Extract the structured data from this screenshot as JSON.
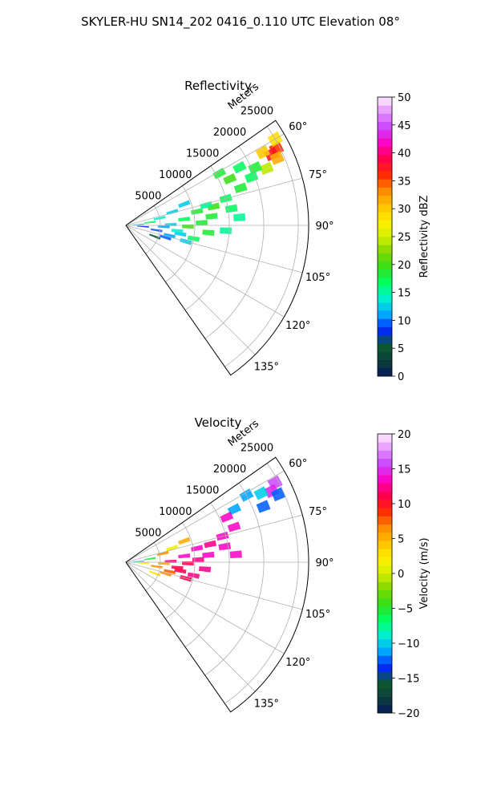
{
  "figure": {
    "title": "SKYLER-HU  SN14_202  0416_0.110 UTC Elevation 08°"
  },
  "chart_data": [
    {
      "type": "heatmap",
      "subtype": "polar-sector",
      "title": "Reflectivity",
      "range_axis_label": "Meters",
      "range_ticks": [
        5000,
        10000,
        15000,
        20000,
        25000
      ],
      "range_tick_labels": [
        "5000",
        "10000",
        "15000",
        "20000",
        "25000"
      ],
      "range_lim": [
        0,
        26500
      ],
      "azimuth_ticks": [
        60,
        75,
        90,
        105,
        120,
        135
      ],
      "azimuth_tick_labels": [
        "60°",
        "75°",
        "90°",
        "105°",
        "120°",
        "135°"
      ],
      "azimuth_lim": [
        55,
        145
      ],
      "grid": true,
      "colorbar": {
        "label": "Reflectivity dBZ",
        "ticks": [
          0,
          5,
          10,
          15,
          20,
          25,
          30,
          35,
          40,
          45,
          50
        ],
        "tick_labels": [
          "0",
          "5",
          "10",
          "15",
          "20",
          "25",
          "30",
          "35",
          "40",
          "45",
          "50"
        ],
        "range": [
          0,
          50
        ],
        "steps": 34,
        "colormap": [
          "#061a5a",
          "#0c3f3a",
          "#0b5a2e",
          "#0026ff",
          "#00aaff",
          "#00f0d0",
          "#00ff66",
          "#33e01a",
          "#7ed600",
          "#d4ee00",
          "#fff000",
          "#ffc000",
          "#ff8800",
          "#ff2a00",
          "#ff0048",
          "#ff00c0",
          "#c840ff",
          "#e490ff",
          "#fff0ff"
        ]
      },
      "cells": [
        {
          "az": 63,
          "r": 24500,
          "value": 36
        },
        {
          "az": 64,
          "r": 23500,
          "value": 38
        },
        {
          "az": 62,
          "r": 22500,
          "value": 30
        },
        {
          "az": 66,
          "r": 24000,
          "value": 32
        },
        {
          "az": 60,
          "r": 25000,
          "value": 28
        },
        {
          "az": 68,
          "r": 22000,
          "value": 24
        },
        {
          "az": 66,
          "r": 20500,
          "value": 18
        },
        {
          "az": 63,
          "r": 18500,
          "value": 17
        },
        {
          "az": 66,
          "r": 16500,
          "value": 20
        },
        {
          "az": 61,
          "r": 15500,
          "value": 19
        },
        {
          "az": 72,
          "r": 17500,
          "value": 19
        },
        {
          "az": 75,
          "r": 15000,
          "value": 17
        },
        {
          "az": 78,
          "r": 13000,
          "value": 20
        },
        {
          "az": 81,
          "r": 15500,
          "value": 17
        },
        {
          "az": 84,
          "r": 12500,
          "value": 19
        },
        {
          "az": 88,
          "r": 11000,
          "value": 18
        },
        {
          "az": 91,
          "r": 9000,
          "value": 20
        },
        {
          "az": 95,
          "r": 12000,
          "value": 18
        },
        {
          "az": 86,
          "r": 16500,
          "value": 16
        },
        {
          "az": 70,
          "r": 9000,
          "value": 13
        },
        {
          "az": 74,
          "r": 7000,
          "value": 12
        },
        {
          "az": 78,
          "r": 5000,
          "value": 14
        },
        {
          "az": 83,
          "r": 3500,
          "value": 17
        },
        {
          "az": 86,
          "r": 1800,
          "value": 12
        },
        {
          "az": 94,
          "r": 2500,
          "value": 8
        },
        {
          "az": 99,
          "r": 4500,
          "value": 9
        },
        {
          "az": 103,
          "r": 6500,
          "value": 11
        },
        {
          "az": 99,
          "r": 8000,
          "value": 12
        },
        {
          "az": 107,
          "r": 6000,
          "value": 9
        },
        {
          "az": 111,
          "r": 4500,
          "value": 5
        },
        {
          "az": 92,
          "r": 5500,
          "value": 11
        },
        {
          "az": 89,
          "r": 6500,
          "value": 13
        },
        {
          "az": 84,
          "r": 8500,
          "value": 17
        },
        {
          "az": 79,
          "r": 10500,
          "value": 18
        },
        {
          "az": 76,
          "r": 12000,
          "value": 15
        },
        {
          "az": 96,
          "r": 7500,
          "value": 14
        },
        {
          "az": 101,
          "r": 10000,
          "value": 17
        },
        {
          "az": 105,
          "r": 9000,
          "value": 13
        },
        {
          "az": 93,
          "r": 14500,
          "value": 16
        },
        {
          "az": 69,
          "r": 19500,
          "value": 17
        }
      ]
    },
    {
      "type": "heatmap",
      "subtype": "polar-sector",
      "title": "Velocity",
      "range_axis_label": "Meters",
      "range_ticks": [
        5000,
        10000,
        15000,
        20000,
        25000
      ],
      "range_tick_labels": [
        "5000",
        "10000",
        "15000",
        "20000",
        "25000"
      ],
      "range_lim": [
        0,
        26500
      ],
      "azimuth_ticks": [
        60,
        75,
        90,
        105,
        120,
        135
      ],
      "azimuth_tick_labels": [
        "60°",
        "75°",
        "90°",
        "105°",
        "120°",
        "135°"
      ],
      "azimuth_lim": [
        55,
        145
      ],
      "grid": true,
      "colorbar": {
        "label": "Velocity (m/s)",
        "ticks": [
          -20,
          -15,
          -10,
          -5,
          0,
          5,
          10,
          15,
          20
        ],
        "tick_labels": [
          "−20",
          "−15",
          "−10",
          "−5",
          "0",
          "5",
          "10",
          "15",
          "20"
        ],
        "range": [
          -20,
          20
        ],
        "steps": 34,
        "colormap": [
          "#061a5a",
          "#0c3f3a",
          "#0b5a2e",
          "#0026ff",
          "#00aaff",
          "#00f0d0",
          "#00ff66",
          "#33e01a",
          "#7ed600",
          "#d4ee00",
          "#fff000",
          "#ffc000",
          "#ff8800",
          "#ff2a00",
          "#ff0048",
          "#ff00c0",
          "#c840ff",
          "#e490ff",
          "#fff0ff"
        ]
      },
      "cells": [
        {
          "az": 62,
          "r": 24500,
          "value": 16
        },
        {
          "az": 64,
          "r": 23500,
          "value": 15
        },
        {
          "az": 66,
          "r": 24200,
          "value": -12
        },
        {
          "az": 63,
          "r": 22000,
          "value": -10
        },
        {
          "az": 61,
          "r": 20000,
          "value": -11
        },
        {
          "az": 68,
          "r": 21500,
          "value": -12
        },
        {
          "az": 64,
          "r": 17500,
          "value": -11
        },
        {
          "az": 66,
          "r": 16000,
          "value": 13
        },
        {
          "az": 72,
          "r": 16500,
          "value": 14
        },
        {
          "az": 75,
          "r": 14500,
          "value": 13
        },
        {
          "az": 78,
          "r": 12500,
          "value": 12
        },
        {
          "az": 81,
          "r": 14500,
          "value": 13
        },
        {
          "az": 85,
          "r": 12000,
          "value": 13
        },
        {
          "az": 88,
          "r": 10500,
          "value": 12
        },
        {
          "az": 91,
          "r": 9000,
          "value": 11
        },
        {
          "az": 95,
          "r": 11500,
          "value": 12
        },
        {
          "az": 86,
          "r": 16000,
          "value": 14
        },
        {
          "az": 70,
          "r": 9000,
          "value": 5
        },
        {
          "az": 73,
          "r": 7000,
          "value": 2
        },
        {
          "az": 77,
          "r": 5500,
          "value": 6
        },
        {
          "az": 82,
          "r": 3500,
          "value": -5
        },
        {
          "az": 86,
          "r": 1800,
          "value": -10
        },
        {
          "az": 93,
          "r": 2500,
          "value": 3
        },
        {
          "az": 98,
          "r": 4500,
          "value": 7
        },
        {
          "az": 102,
          "r": 6500,
          "value": 8
        },
        {
          "az": 99,
          "r": 8000,
          "value": 11
        },
        {
          "az": 106,
          "r": 6000,
          "value": 7
        },
        {
          "az": 111,
          "r": 4500,
          "value": 3
        },
        {
          "az": 92,
          "r": 5500,
          "value": 5
        },
        {
          "az": 89,
          "r": 6500,
          "value": 12
        },
        {
          "az": 84,
          "r": 8500,
          "value": 14
        },
        {
          "az": 79,
          "r": 10500,
          "value": 13
        },
        {
          "az": 96,
          "r": 7500,
          "value": 11
        },
        {
          "az": 101,
          "r": 10000,
          "value": 12
        },
        {
          "az": 105,
          "r": 9000,
          "value": 11
        }
      ]
    }
  ]
}
